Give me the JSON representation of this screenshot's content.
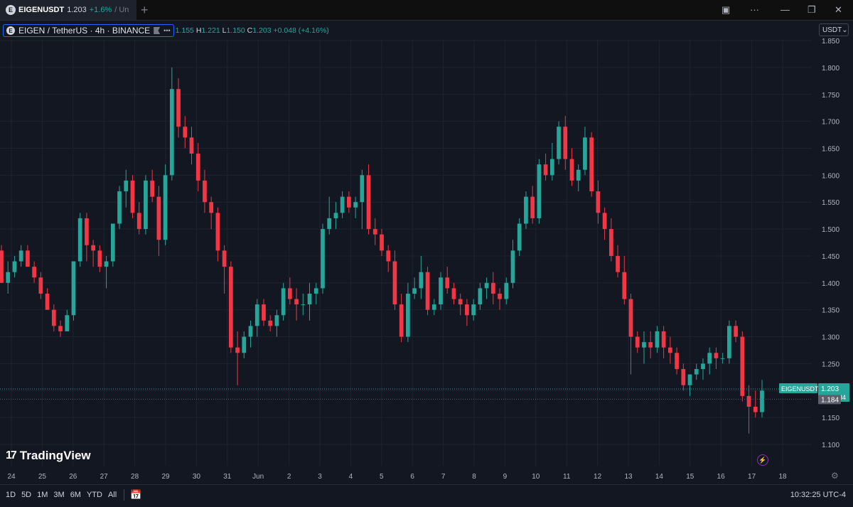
{
  "tab": {
    "symbol": "EIGENUSDT",
    "price": "1.203",
    "change": "+1.6%",
    "suffix": "/ Un",
    "logo": "E"
  },
  "header": {
    "symbol_line": "EIGEN / TetherUS · 4h · BINANCE",
    "o_label": "",
    "o_value": "1.155",
    "h_label": "H",
    "h_value": "1.221",
    "l_label": "L",
    "l_value": "1.150",
    "c_label": "C",
    "c_value": "1.203",
    "change": "+0.048 (+4.16%)"
  },
  "currency": "USDT",
  "watermark": "TradingView",
  "bottom": {
    "ranges": [
      "1D",
      "5D",
      "1M",
      "3M",
      "6M",
      "YTD",
      "All"
    ],
    "clock": "10:32:25 UTC-4"
  },
  "colors": {
    "up": "#26a69a",
    "down": "#f23645",
    "bg": "#131722",
    "grid": "#1f2330"
  },
  "chart_data": {
    "type": "candlestick",
    "symbol": "EIGENUSDT",
    "interval": "4h",
    "y_ticks": [
      "1.100",
      "1.150",
      "1.200",
      "1.250",
      "1.300",
      "1.350",
      "1.400",
      "1.450",
      "1.500",
      "1.550",
      "1.600",
      "1.650",
      "1.700",
      "1.750",
      "1.800",
      "1.850"
    ],
    "ylim": [
      1.08,
      1.855
    ],
    "x_ticks": [
      "24",
      "25",
      "26",
      "27",
      "28",
      "29",
      "30",
      "31",
      "Jun",
      "2",
      "3",
      "4",
      "5",
      "6",
      "7",
      "8",
      "9",
      "10",
      "11",
      "12",
      "13",
      "14",
      "15",
      "16",
      "17",
      "18"
    ],
    "last_price_label": "EIGENUSDT",
    "last_price": "1.203",
    "countdown": "01:27:34",
    "secondary_price": "1.184",
    "ohlc": [
      [
        1.46,
        1.47,
        1.4,
        1.4
      ],
      [
        1.4,
        1.44,
        1.38,
        1.42
      ],
      [
        1.42,
        1.45,
        1.41,
        1.44
      ],
      [
        1.44,
        1.47,
        1.43,
        1.46
      ],
      [
        1.46,
        1.47,
        1.43,
        1.43
      ],
      [
        1.43,
        1.44,
        1.4,
        1.41
      ],
      [
        1.41,
        1.42,
        1.37,
        1.38
      ],
      [
        1.38,
        1.39,
        1.35,
        1.35
      ],
      [
        1.35,
        1.36,
        1.31,
        1.32
      ],
      [
        1.32,
        1.33,
        1.3,
        1.31
      ],
      [
        1.31,
        1.35,
        1.31,
        1.34
      ],
      [
        1.34,
        1.44,
        1.33,
        1.44
      ],
      [
        1.44,
        1.53,
        1.43,
        1.52
      ],
      [
        1.52,
        1.53,
        1.44,
        1.47
      ],
      [
        1.47,
        1.48,
        1.43,
        1.46
      ],
      [
        1.46,
        1.47,
        1.42,
        1.43
      ],
      [
        1.43,
        1.45,
        1.39,
        1.44
      ],
      [
        1.44,
        1.51,
        1.43,
        1.51
      ],
      [
        1.51,
        1.58,
        1.5,
        1.57
      ],
      [
        1.57,
        1.61,
        1.54,
        1.59
      ],
      [
        1.59,
        1.6,
        1.52,
        1.53
      ],
      [
        1.53,
        1.55,
        1.49,
        1.5
      ],
      [
        1.5,
        1.6,
        1.49,
        1.59
      ],
      [
        1.59,
        1.61,
        1.55,
        1.56
      ],
      [
        1.56,
        1.58,
        1.45,
        1.48
      ],
      [
        1.48,
        1.62,
        1.47,
        1.6
      ],
      [
        1.6,
        1.8,
        1.59,
        1.76
      ],
      [
        1.76,
        1.78,
        1.67,
        1.69
      ],
      [
        1.69,
        1.71,
        1.65,
        1.67
      ],
      [
        1.67,
        1.69,
        1.62,
        1.64
      ],
      [
        1.64,
        1.66,
        1.57,
        1.59
      ],
      [
        1.59,
        1.61,
        1.53,
        1.55
      ],
      [
        1.55,
        1.56,
        1.5,
        1.53
      ],
      [
        1.53,
        1.54,
        1.44,
        1.46
      ],
      [
        1.46,
        1.47,
        1.38,
        1.43
      ],
      [
        1.43,
        1.44,
        1.27,
        1.28
      ],
      [
        1.28,
        1.31,
        1.21,
        1.27
      ],
      [
        1.27,
        1.31,
        1.26,
        1.3
      ],
      [
        1.3,
        1.33,
        1.28,
        1.32
      ],
      [
        1.32,
        1.37,
        1.3,
        1.36
      ],
      [
        1.36,
        1.37,
        1.32,
        1.33
      ],
      [
        1.33,
        1.34,
        1.31,
        1.32
      ],
      [
        1.32,
        1.35,
        1.3,
        1.34
      ],
      [
        1.34,
        1.4,
        1.33,
        1.39
      ],
      [
        1.39,
        1.41,
        1.36,
        1.37
      ],
      [
        1.37,
        1.39,
        1.33,
        1.36
      ],
      [
        1.36,
        1.38,
        1.34,
        1.36
      ],
      [
        1.36,
        1.4,
        1.33,
        1.38
      ],
      [
        1.38,
        1.4,
        1.36,
        1.39
      ],
      [
        1.39,
        1.51,
        1.38,
        1.5
      ],
      [
        1.5,
        1.56,
        1.49,
        1.52
      ],
      [
        1.52,
        1.55,
        1.5,
        1.53
      ],
      [
        1.53,
        1.57,
        1.52,
        1.56
      ],
      [
        1.56,
        1.57,
        1.53,
        1.54
      ],
      [
        1.54,
        1.56,
        1.52,
        1.55
      ],
      [
        1.55,
        1.61,
        1.5,
        1.6
      ],
      [
        1.6,
        1.62,
        1.49,
        1.5
      ],
      [
        1.5,
        1.52,
        1.47,
        1.49
      ],
      [
        1.49,
        1.5,
        1.45,
        1.46
      ],
      [
        1.46,
        1.47,
        1.42,
        1.44
      ],
      [
        1.44,
        1.46,
        1.35,
        1.36
      ],
      [
        1.36,
        1.38,
        1.29,
        1.3
      ],
      [
        1.3,
        1.4,
        1.29,
        1.38
      ],
      [
        1.38,
        1.41,
        1.37,
        1.39
      ],
      [
        1.39,
        1.45,
        1.37,
        1.42
      ],
      [
        1.42,
        1.43,
        1.34,
        1.35
      ],
      [
        1.35,
        1.37,
        1.34,
        1.36
      ],
      [
        1.36,
        1.42,
        1.35,
        1.41
      ],
      [
        1.41,
        1.43,
        1.38,
        1.39
      ],
      [
        1.39,
        1.4,
        1.36,
        1.37
      ],
      [
        1.37,
        1.38,
        1.34,
        1.36
      ],
      [
        1.36,
        1.37,
        1.32,
        1.34
      ],
      [
        1.34,
        1.37,
        1.33,
        1.36
      ],
      [
        1.36,
        1.4,
        1.35,
        1.39
      ],
      [
        1.39,
        1.41,
        1.37,
        1.4
      ],
      [
        1.4,
        1.42,
        1.36,
        1.38
      ],
      [
        1.38,
        1.39,
        1.35,
        1.37
      ],
      [
        1.37,
        1.41,
        1.36,
        1.4
      ],
      [
        1.4,
        1.48,
        1.39,
        1.46
      ],
      [
        1.46,
        1.52,
        1.45,
        1.51
      ],
      [
        1.51,
        1.57,
        1.5,
        1.56
      ],
      [
        1.56,
        1.58,
        1.51,
        1.52
      ],
      [
        1.52,
        1.63,
        1.51,
        1.62
      ],
      [
        1.62,
        1.64,
        1.59,
        1.6
      ],
      [
        1.6,
        1.66,
        1.59,
        1.63
      ],
      [
        1.63,
        1.7,
        1.62,
        1.69
      ],
      [
        1.69,
        1.71,
        1.61,
        1.63
      ],
      [
        1.63,
        1.65,
        1.58,
        1.59
      ],
      [
        1.59,
        1.62,
        1.57,
        1.61
      ],
      [
        1.61,
        1.69,
        1.6,
        1.67
      ],
      [
        1.67,
        1.68,
        1.56,
        1.57
      ],
      [
        1.57,
        1.59,
        1.51,
        1.53
      ],
      [
        1.53,
        1.54,
        1.48,
        1.5
      ],
      [
        1.5,
        1.52,
        1.44,
        1.45
      ],
      [
        1.45,
        1.47,
        1.41,
        1.42
      ],
      [
        1.42,
        1.45,
        1.36,
        1.37
      ],
      [
        1.37,
        1.38,
        1.23,
        1.3
      ],
      [
        1.3,
        1.31,
        1.27,
        1.28
      ],
      [
        1.28,
        1.31,
        1.25,
        1.29
      ],
      [
        1.29,
        1.31,
        1.26,
        1.28
      ],
      [
        1.28,
        1.32,
        1.27,
        1.31
      ],
      [
        1.31,
        1.32,
        1.26,
        1.28
      ],
      [
        1.28,
        1.3,
        1.25,
        1.27
      ],
      [
        1.27,
        1.28,
        1.23,
        1.24
      ],
      [
        1.24,
        1.25,
        1.2,
        1.21
      ],
      [
        1.21,
        1.23,
        1.19,
        1.23
      ],
      [
        1.23,
        1.25,
        1.22,
        1.24
      ],
      [
        1.24,
        1.26,
        1.22,
        1.25
      ],
      [
        1.25,
        1.28,
        1.23,
        1.27
      ],
      [
        1.27,
        1.28,
        1.24,
        1.26
      ],
      [
        1.26,
        1.27,
        1.25,
        1.26
      ],
      [
        1.26,
        1.33,
        1.25,
        1.32
      ],
      [
        1.32,
        1.33,
        1.29,
        1.3
      ],
      [
        1.3,
        1.31,
        1.18,
        1.19
      ],
      [
        1.19,
        1.21,
        1.12,
        1.17
      ],
      [
        1.17,
        1.2,
        1.15,
        1.16
      ],
      [
        1.16,
        1.22,
        1.15,
        1.2
      ]
    ]
  }
}
